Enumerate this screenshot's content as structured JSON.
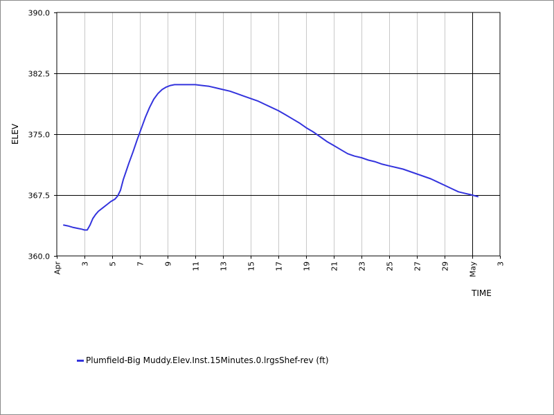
{
  "chart_data": {
    "type": "line",
    "xlabel": "TIME",
    "ylabel": "ELEV",
    "ylim": [
      360.0,
      390.0
    ],
    "y_ticks": [
      "360.0",
      "367.5",
      "375.0",
      "382.5",
      "390.0"
    ],
    "x_range_days": [
      0,
      32
    ],
    "x_tick_labels": [
      {
        "day": 0,
        "label": "Apr"
      },
      {
        "day": 2,
        "label": "3"
      },
      {
        "day": 4,
        "label": "5"
      },
      {
        "day": 6,
        "label": "7"
      },
      {
        "day": 8,
        "label": "9"
      },
      {
        "day": 10,
        "label": "11"
      },
      {
        "day": 12,
        "label": "13"
      },
      {
        "day": 14,
        "label": "15"
      },
      {
        "day": 16,
        "label": "17"
      },
      {
        "day": 18,
        "label": "19"
      },
      {
        "day": 20,
        "label": "21"
      },
      {
        "day": 22,
        "label": "23"
      },
      {
        "day": 24,
        "label": "25"
      },
      {
        "day": 26,
        "label": "27"
      },
      {
        "day": 28,
        "label": "29"
      },
      {
        "day": 30,
        "label": "May"
      },
      {
        "day": 32,
        "label": "3"
      }
    ],
    "grid": true,
    "legend_position": "bottom-left",
    "series": [
      {
        "name": "Plumfield-Big Muddy.Elev.Inst.15Minutes.0.lrgsShef-rev (ft)",
        "color": "#3333dd",
        "x": [
          0.5,
          0.8,
          1.2,
          1.5,
          1.8,
          2.0,
          2.2,
          2.4,
          2.6,
          2.8,
          3.0,
          3.3,
          3.6,
          3.9,
          4.2,
          4.4,
          4.6,
          4.8,
          5.0,
          5.2,
          5.5,
          5.8,
          6.1,
          6.4,
          6.7,
          7.0,
          7.3,
          7.6,
          7.9,
          8.2,
          8.5,
          8.8,
          9.0,
          9.5,
          10.0,
          10.5,
          11.0,
          11.5,
          12.0,
          12.5,
          13.0,
          13.5,
          14.0,
          14.5,
          15.0,
          15.5,
          16.0,
          16.5,
          17.0,
          17.5,
          18.0,
          18.5,
          19.0,
          19.5,
          20.0,
          20.5,
          21.0,
          21.5,
          22.0,
          22.5,
          23.0,
          23.5,
          24.0,
          24.5,
          25.0,
          25.5,
          26.0,
          26.5,
          27.0,
          27.5,
          28.0,
          28.5,
          29.0,
          29.5,
          30.0,
          30.4
        ],
        "y": [
          363.8,
          363.7,
          363.5,
          363.4,
          363.3,
          363.2,
          363.2,
          363.8,
          364.6,
          365.1,
          365.5,
          365.9,
          366.3,
          366.7,
          367.0,
          367.4,
          368.1,
          369.4,
          370.4,
          371.4,
          372.8,
          374.3,
          375.7,
          377.1,
          378.3,
          379.3,
          380.0,
          380.5,
          380.8,
          381.0,
          381.1,
          381.1,
          381.1,
          381.1,
          381.1,
          381.0,
          380.9,
          380.7,
          380.5,
          380.3,
          380.0,
          379.7,
          379.4,
          379.1,
          378.7,
          378.3,
          377.9,
          377.4,
          376.9,
          376.4,
          375.8,
          375.3,
          374.7,
          374.1,
          373.6,
          373.1,
          372.6,
          372.3,
          372.1,
          371.8,
          371.6,
          371.3,
          371.1,
          370.9,
          370.7,
          370.4,
          370.1,
          369.8,
          369.5,
          369.1,
          368.7,
          368.3,
          367.9,
          367.7,
          367.5,
          367.3
        ]
      }
    ]
  }
}
